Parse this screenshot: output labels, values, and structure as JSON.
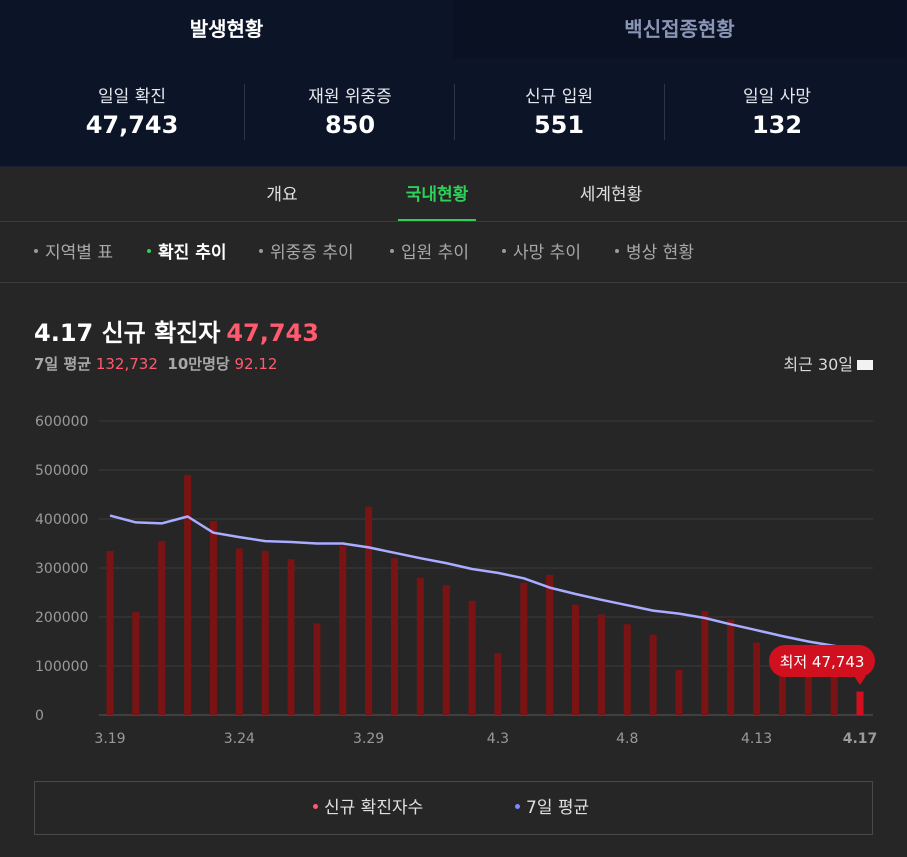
{
  "main_tabs": [
    {
      "label": "발생현황",
      "active": true
    },
    {
      "label": "백신접종현황",
      "active": false
    }
  ],
  "stats": [
    {
      "label": "일일 확진",
      "value": "47,743"
    },
    {
      "label": "재원 위중증",
      "value": "850"
    },
    {
      "label": "신규 입원",
      "value": "551"
    },
    {
      "label": "일일 사망",
      "value": "132"
    }
  ],
  "sub_tabs": [
    {
      "label": "개요",
      "active": false
    },
    {
      "label": "국내현황",
      "active": true
    },
    {
      "label": "세계현황",
      "active": false
    }
  ],
  "chips": [
    {
      "label": "지역별 표",
      "active": false
    },
    {
      "label": "확진 추이",
      "active": true
    },
    {
      "label": "위중증 추이",
      "active": false
    },
    {
      "label": "입원 추이",
      "active": false
    },
    {
      "label": "사망 추이",
      "active": false
    },
    {
      "label": "병상 현황",
      "active": false
    }
  ],
  "headline": {
    "title": "4.17 신규 확진자",
    "value": "47,743"
  },
  "summary": {
    "avg_label": "7일 평균",
    "avg_value": "132,732",
    "per_label": "10만명당",
    "per_value": "92.12"
  },
  "range_select": {
    "label": "최근 30일",
    "icon": "chevron-down-icon"
  },
  "tooltip": {
    "label": "최저 47,743"
  },
  "colors": {
    "bar": "#7a1414",
    "bar_last": "#d0101e",
    "line": "#a9acff",
    "accent": "#ff5a6e",
    "green": "#2ed05a"
  },
  "chart_data": {
    "type": "bar",
    "title": "",
    "x": [
      "3.19",
      "3.20",
      "3.21",
      "3.22",
      "3.23",
      "3.24",
      "3.25",
      "3.26",
      "3.27",
      "3.28",
      "3.29",
      "3.30",
      "3.31",
      "4.1",
      "4.2",
      "4.3",
      "4.4",
      "4.5",
      "4.6",
      "4.7",
      "4.8",
      "4.9",
      "4.10",
      "4.11",
      "4.12",
      "4.13",
      "4.14",
      "4.15",
      "4.16",
      "4.17"
    ],
    "x_tick_labels": [
      "3.19",
      "3.24",
      "3.29",
      "4.3",
      "4.8",
      "4.13",
      "4.17"
    ],
    "y_ticks": [
      "600000",
      "500000",
      "400000",
      "300000",
      "200000",
      "100000",
      "0"
    ],
    "ylim": [
      0,
      600000
    ],
    "grid": true,
    "series": [
      {
        "name": "신규 확진자수",
        "type": "bar",
        "values": [
          335000,
          210000,
          355000,
          490000,
          396000,
          340000,
          335000,
          318000,
          187000,
          345000,
          425000,
          320000,
          280000,
          265000,
          233000,
          126000,
          270000,
          286000,
          225000,
          205000,
          185000,
          164000,
          92000,
          212000,
          195000,
          148000,
          117000,
          108000,
          93000,
          47743
        ]
      },
      {
        "name": "7일 평균",
        "type": "line",
        "values": [
          407000,
          393000,
          391000,
          405000,
          372000,
          363000,
          355000,
          353000,
          350000,
          350000,
          342000,
          331000,
          320000,
          310000,
          298000,
          290000,
          279000,
          260000,
          247000,
          235000,
          224000,
          213000,
          207000,
          198000,
          185000,
          173000,
          161000,
          150000,
          141000,
          132732
        ]
      }
    ]
  },
  "legend": [
    {
      "label": "신규 확진자수",
      "color": "#ff5a6e"
    },
    {
      "label": "7일 평균",
      "color": "#7c88ff"
    }
  ]
}
